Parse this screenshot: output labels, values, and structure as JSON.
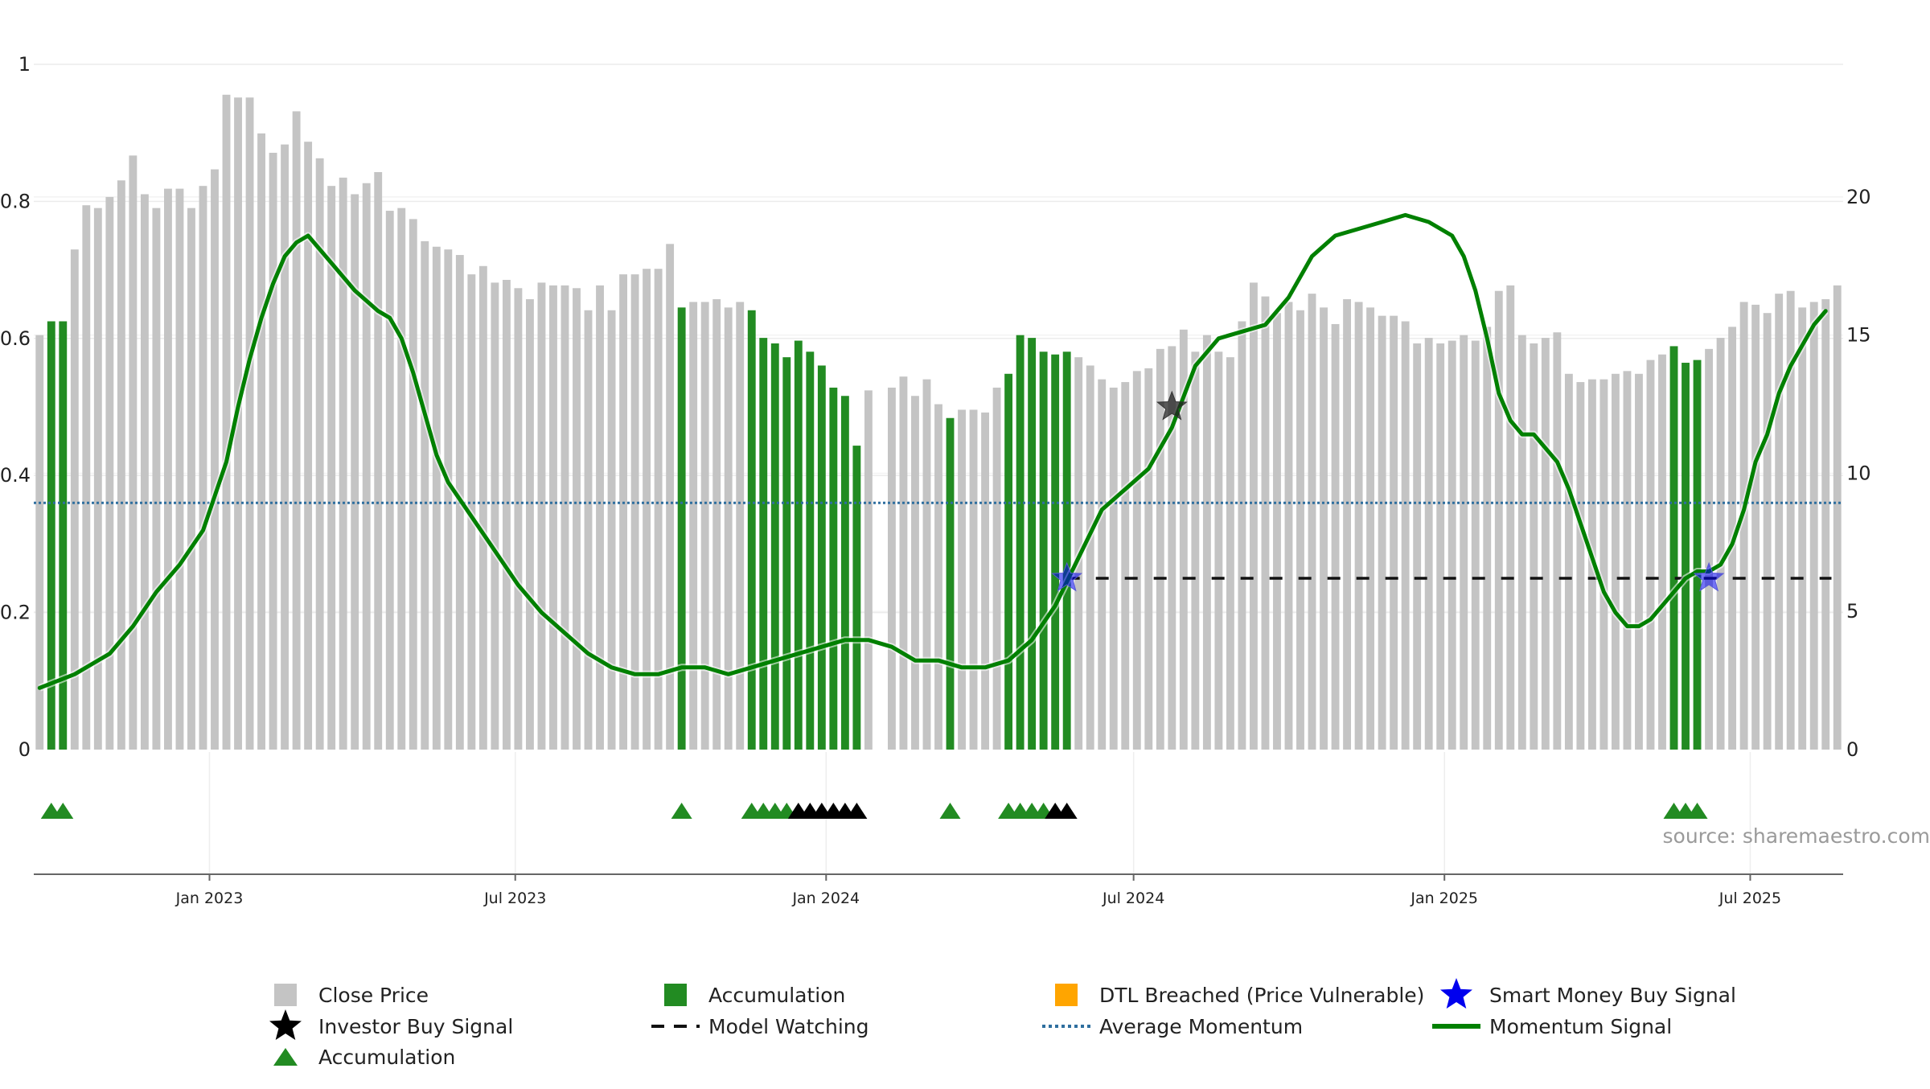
{
  "chart_data": {
    "type": "bar",
    "title": "",
    "watermark": "source: sharemaestro.com",
    "x_axis": {
      "date_start": "2022-09-19",
      "date_end": "2025-08-25",
      "bar_count": 154,
      "tick_labels": [
        "Jan 2023",
        "Jul 2023",
        "Jan 2024",
        "Jul 2024",
        "Jan 2025",
        "Jul 2025"
      ],
      "tick_dates": [
        "2023-01-01",
        "2023-07-01",
        "2024-01-01",
        "2024-07-01",
        "2025-01-01",
        "2025-07-01"
      ]
    },
    "y_left": {
      "min": 0,
      "max": 1,
      "ticks": [
        "0",
        "0.2",
        "0.4",
        "0.6",
        "0.8",
        "1"
      ],
      "tick_values": [
        0,
        0.2,
        0.4,
        0.6,
        0.8,
        1
      ]
    },
    "y_right": {
      "min": 0,
      "max": 24.8,
      "ticks": [
        "0",
        "5",
        "10",
        "15",
        "20"
      ],
      "tick_values": [
        0,
        5,
        10,
        15,
        20
      ]
    },
    "close_price": [
      15.0,
      15.5,
      15.5,
      18.1,
      19.7,
      19.6,
      20.0,
      20.6,
      21.5,
      20.1,
      19.6,
      20.3,
      20.3,
      19.6,
      20.4,
      21.0,
      23.7,
      23.6,
      23.6,
      22.3,
      21.6,
      21.9,
      23.1,
      22.0,
      21.4,
      20.4,
      20.7,
      20.1,
      20.5,
      20.9,
      19.5,
      19.6,
      19.2,
      18.4,
      18.2,
      18.1,
      17.9,
      17.2,
      17.5,
      16.9,
      17.0,
      16.7,
      16.3,
      16.9,
      16.8,
      16.8,
      16.7,
      15.9,
      16.8,
      15.9,
      17.2,
      17.2,
      17.4,
      17.4,
      18.3,
      16.0,
      16.2,
      16.2,
      16.3,
      16.0,
      16.2,
      15.9,
      14.9,
      14.7,
      14.2,
      14.8,
      14.4,
      13.9,
      13.1,
      12.8,
      11.0,
      13.0,
      0,
      13.1,
      13.5,
      12.8,
      13.4,
      12.5,
      12.0,
      12.3,
      12.3,
      12.2,
      13.1,
      13.6,
      15.0,
      14.9,
      14.4,
      14.3,
      14.4,
      14.2,
      13.9,
      13.4,
      13.1,
      13.3,
      13.7,
      13.8,
      14.5,
      14.6,
      15.2,
      14.4,
      15.0,
      14.4,
      14.2,
      15.5,
      16.9,
      16.4,
      15.8,
      16.2,
      15.9,
      16.5,
      16.0,
      15.4,
      16.3,
      16.2,
      16.0,
      15.7,
      15.7,
      15.5,
      14.7,
      14.9,
      14.7,
      14.8,
      15.0,
      14.8,
      15.3,
      16.6,
      16.8,
      15.0,
      14.7,
      14.9,
      15.1,
      13.6,
      13.3,
      13.4,
      13.4,
      13.6,
      13.7,
      13.6,
      14.1,
      14.3,
      14.6,
      14.0,
      14.1,
      14.5,
      14.9,
      15.3,
      16.2,
      16.1,
      15.8,
      16.5,
      16.6,
      16.0,
      16.2,
      16.3,
      16.8
    ],
    "accumulation_bars": [
      1,
      2,
      55,
      61,
      62,
      63,
      64,
      65,
      66,
      67,
      68,
      69,
      70,
      78,
      83,
      84,
      85,
      86,
      87,
      88,
      140,
      141,
      142
    ],
    "momentum_signal": [
      [
        0,
        0.09
      ],
      [
        3,
        0.11
      ],
      [
        6,
        0.14
      ],
      [
        8,
        0.18
      ],
      [
        10,
        0.23
      ],
      [
        12,
        0.27
      ],
      [
        14,
        0.32
      ],
      [
        15,
        0.37
      ],
      [
        16,
        0.42
      ],
      [
        17,
        0.5
      ],
      [
        18,
        0.57
      ],
      [
        19,
        0.63
      ],
      [
        20,
        0.68
      ],
      [
        21,
        0.72
      ],
      [
        22,
        0.74
      ],
      [
        23,
        0.75
      ],
      [
        24,
        0.73
      ],
      [
        25,
        0.71
      ],
      [
        27,
        0.67
      ],
      [
        29,
        0.64
      ],
      [
        30,
        0.63
      ],
      [
        31,
        0.6
      ],
      [
        32,
        0.55
      ],
      [
        33,
        0.49
      ],
      [
        34,
        0.43
      ],
      [
        35,
        0.39
      ],
      [
        37,
        0.34
      ],
      [
        39,
        0.29
      ],
      [
        41,
        0.24
      ],
      [
        43,
        0.2
      ],
      [
        45,
        0.17
      ],
      [
        47,
        0.14
      ],
      [
        49,
        0.12
      ],
      [
        51,
        0.11
      ],
      [
        53,
        0.11
      ],
      [
        55,
        0.12
      ],
      [
        57,
        0.12
      ],
      [
        59,
        0.11
      ],
      [
        61,
        0.12
      ],
      [
        63,
        0.13
      ],
      [
        65,
        0.14
      ],
      [
        67,
        0.15
      ],
      [
        69,
        0.16
      ],
      [
        71,
        0.16
      ],
      [
        73,
        0.15
      ],
      [
        75,
        0.13
      ],
      [
        77,
        0.13
      ],
      [
        79,
        0.12
      ],
      [
        81,
        0.12
      ],
      [
        83,
        0.13
      ],
      [
        85,
        0.16
      ],
      [
        87,
        0.21
      ],
      [
        89,
        0.28
      ],
      [
        91,
        0.35
      ],
      [
        93,
        0.38
      ],
      [
        95,
        0.41
      ],
      [
        97,
        0.47
      ],
      [
        99,
        0.56
      ],
      [
        101,
        0.6
      ],
      [
        103,
        0.61
      ],
      [
        105,
        0.62
      ],
      [
        107,
        0.66
      ],
      [
        109,
        0.72
      ],
      [
        111,
        0.75
      ],
      [
        113,
        0.76
      ],
      [
        115,
        0.77
      ],
      [
        117,
        0.78
      ],
      [
        119,
        0.77
      ],
      [
        121,
        0.75
      ],
      [
        122,
        0.72
      ],
      [
        123,
        0.67
      ],
      [
        124,
        0.6
      ],
      [
        125,
        0.52
      ],
      [
        126,
        0.48
      ],
      [
        127,
        0.46
      ],
      [
        128,
        0.46
      ],
      [
        129,
        0.44
      ],
      [
        130,
        0.42
      ],
      [
        131,
        0.38
      ],
      [
        132,
        0.33
      ],
      [
        133,
        0.28
      ],
      [
        134,
        0.23
      ],
      [
        135,
        0.2
      ],
      [
        136,
        0.18
      ],
      [
        137,
        0.18
      ],
      [
        138,
        0.19
      ],
      [
        139,
        0.21
      ],
      [
        140,
        0.23
      ],
      [
        141,
        0.25
      ],
      [
        142,
        0.26
      ],
      [
        143,
        0.26
      ],
      [
        144,
        0.27
      ],
      [
        145,
        0.3
      ],
      [
        146,
        0.35
      ],
      [
        147,
        0.42
      ],
      [
        148,
        0.46
      ],
      [
        149,
        0.52
      ],
      [
        150,
        0.56
      ],
      [
        151,
        0.59
      ],
      [
        152,
        0.62
      ],
      [
        153,
        0.64
      ]
    ],
    "average_momentum": 0.36,
    "model_watching": {
      "start_bar": 88,
      "end_bar": 153,
      "level": 0.25
    },
    "investor_buy_signals": [
      {
        "bar": 97,
        "value": 0.5
      }
    ],
    "smart_money_buy_signals": [
      {
        "bar": 88,
        "value": 0.25
      },
      {
        "bar": 143,
        "value": 0.25
      }
    ],
    "triangle_markers": {
      "green": [
        1,
        2,
        55,
        61,
        62,
        63,
        64,
        78,
        83,
        84,
        85,
        86,
        140,
        141,
        142
      ],
      "black": [
        65,
        66,
        67,
        68,
        69,
        70,
        87,
        88
      ]
    },
    "colors": {
      "close_price": "#c4c4c4",
      "accumulation": "#228b22",
      "dtl_breached": "#ffa500",
      "momentum": "#008000",
      "average_momentum": "#2f6f9f",
      "smart_money": "#0000ee",
      "investor": "#000000"
    },
    "legend": [
      {
        "label": "Close Price",
        "symbol": "grey-square-icon"
      },
      {
        "label": "Accumulation",
        "symbol": "green-square-icon"
      },
      {
        "label": "DTL Breached (Price Vulnerable)",
        "symbol": "orange-square-icon"
      },
      {
        "label": "Smart Money Buy Signal",
        "symbol": "blue-star-icon"
      },
      {
        "label": "Investor Buy Signal",
        "symbol": "black-star-icon"
      },
      {
        "label": "Model Watching",
        "symbol": "dashed-line-icon"
      },
      {
        "label": "Average Momentum",
        "symbol": "dotted-line-icon"
      },
      {
        "label": "Momentum Signal",
        "symbol": "solid-line-icon"
      },
      {
        "label": "Accumulation",
        "symbol": "green-triangle-icon"
      }
    ]
  }
}
